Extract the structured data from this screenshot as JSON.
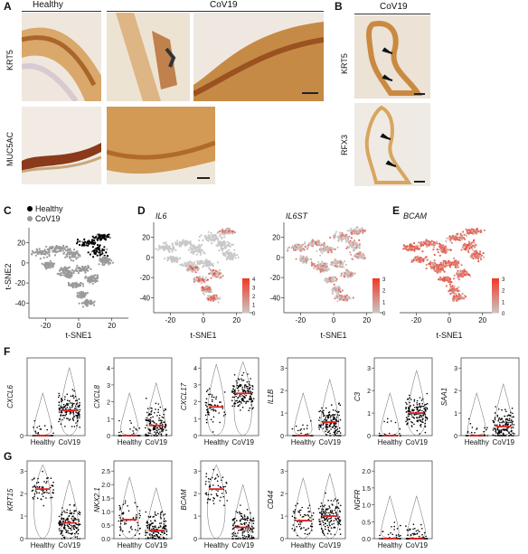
{
  "panels": {
    "A": {
      "letter": "A",
      "col_healthy": "Healthy",
      "col_cov19": "CoV19",
      "row1": "KRT5",
      "row2": "MUC5AC"
    },
    "B": {
      "letter": "B",
      "col": "CoV19",
      "row1": "KRT5",
      "row2": "RFX3"
    },
    "C": {
      "letter": "C",
      "legend": [
        {
          "label": "Healthy",
          "color": "#000000"
        },
        {
          "label": "CoV19",
          "color": "#9a9a9a"
        }
      ],
      "xlabel": "t-SNE1",
      "ylabel": "t-SNE2",
      "xticks": [
        "-20",
        "0",
        "20"
      ],
      "yticks": [
        "20",
        "0",
        "-20",
        "-40"
      ]
    },
    "D": {
      "letter": "D",
      "genes": [
        "IL6",
        "IL6ST"
      ],
      "xlabel": "t-SNE1",
      "xticks": [
        "-20",
        "0",
        "20"
      ],
      "yticks": [
        "20",
        "0",
        "-20",
        "-40"
      ],
      "cbar1": [
        "4",
        "3",
        "2",
        "1",
        "0"
      ],
      "cbar2": [
        "3",
        "2",
        "1",
        "0"
      ]
    },
    "E": {
      "letter": "E",
      "gene": "BCAM",
      "xlabel": "t-SNE1",
      "xticks": [
        "-20",
        "0",
        "20"
      ],
      "cbar": [
        "3",
        "2",
        "1",
        "0"
      ]
    },
    "F": {
      "letter": "F",
      "groups": [
        "Healthy",
        "CoV19"
      ]
    },
    "G": {
      "letter": "G",
      "groups": [
        "Healthy",
        "CoV19"
      ]
    }
  },
  "colors": {
    "tsne_gray": "#9a9a9a",
    "tsne_black": "#000000",
    "expr_red": "#e0432e",
    "median_red": "#e02020",
    "dab_brown": "#b5651d"
  },
  "chart_data": [
    {
      "type": "scatter",
      "panel": "C",
      "title": "",
      "xlabel": "t-SNE1",
      "ylabel": "t-SNE2",
      "xlim": [
        -30,
        30
      ],
      "ylim": [
        -55,
        35
      ],
      "series": [
        {
          "name": "Healthy"
        },
        {
          "name": "CoV19"
        }
      ]
    },
    {
      "type": "violin",
      "panel": "F",
      "gene": "CXCL6",
      "categories": [
        "Healthy",
        "CoV19"
      ],
      "yticks": [
        "0"
      ],
      "medians": [
        0,
        1.3
      ]
    },
    {
      "type": "violin",
      "panel": "F",
      "gene": "CXCL8",
      "categories": [
        "Healthy",
        "CoV19"
      ],
      "yticks": [
        "0",
        "1",
        "2",
        "3",
        "4"
      ],
      "medians": [
        0,
        0.6
      ]
    },
    {
      "type": "violin",
      "panel": "F",
      "gene": "CXCL17",
      "categories": [
        "Healthy",
        "CoV19"
      ],
      "yticks": [
        "0",
        "1",
        "2",
        "3",
        "4"
      ],
      "medians": [
        1.7,
        2.5
      ]
    },
    {
      "type": "violin",
      "panel": "F",
      "gene": "IL1B",
      "categories": [
        "Healthy",
        "CoV19"
      ],
      "yticks": [
        "0",
        "1",
        "2",
        "3"
      ],
      "medians": [
        0,
        0.6
      ]
    },
    {
      "type": "violin",
      "panel": "F",
      "gene": "C3",
      "categories": [
        "Healthy",
        "CoV19"
      ],
      "yticks": [
        "0",
        "1",
        "2",
        "3"
      ],
      "medians": [
        0,
        1.0
      ]
    },
    {
      "type": "violin",
      "panel": "F",
      "gene": "SAA1",
      "categories": [
        "Healthy",
        "CoV19"
      ],
      "yticks": [
        "0",
        "1",
        "2",
        "3"
      ],
      "medians": [
        0,
        0.4
      ]
    },
    {
      "type": "violin",
      "panel": "G",
      "gene": "KRT15",
      "categories": [
        "Healthy",
        "CoV19"
      ],
      "yticks": [
        "0",
        "1",
        "2",
        "3"
      ],
      "medians": [
        2.2,
        0.7
      ]
    },
    {
      "type": "violin",
      "panel": "G",
      "gene": "NKX2.1",
      "categories": [
        "Healthy",
        "CoV19"
      ],
      "yticks": [
        "0.0",
        "0.5",
        "1.0",
        "1.5",
        "2.0",
        "2.5"
      ],
      "medians": [
        0.7,
        0.3
      ]
    },
    {
      "type": "violin",
      "panel": "G",
      "gene": "BCAM",
      "categories": [
        "Healthy",
        "CoV19"
      ],
      "yticks": [
        "0",
        "1",
        "2",
        "3"
      ],
      "medians": [
        2.2,
        0.5
      ]
    },
    {
      "type": "violin",
      "panel": "G",
      "gene": "CD44",
      "categories": [
        "Healthy",
        "CoV19"
      ],
      "yticks": [
        "0",
        "1",
        "2",
        "3"
      ],
      "medians": [
        0.8,
        1.0
      ]
    },
    {
      "type": "violin",
      "panel": "G",
      "gene": "NGFR",
      "categories": [
        "Healthy",
        "CoV19"
      ],
      "yticks": [
        "0.0",
        "0.5",
        "1.0",
        "1.5",
        "2.0"
      ],
      "medians": [
        0,
        0
      ]
    }
  ]
}
